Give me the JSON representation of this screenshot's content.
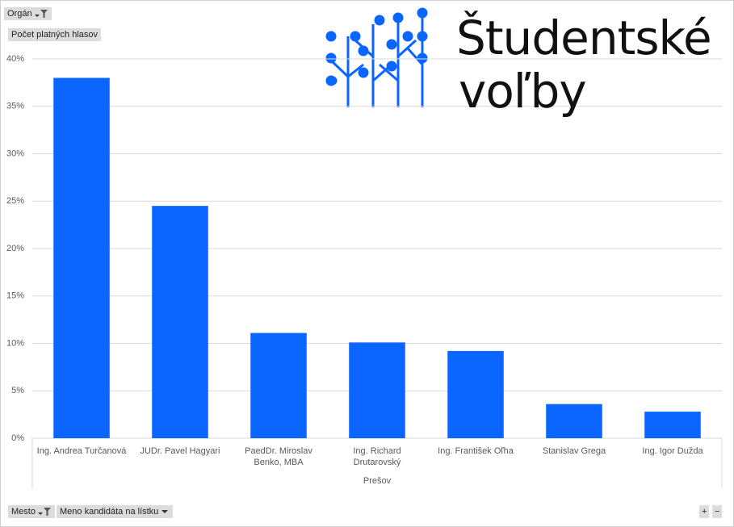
{
  "chart_data": {
    "type": "bar",
    "categories": [
      "Ing. Andrea Turčanová",
      "JUDr. Pavel Hagyari",
      "PaedDr. Miroslav Benko, MBA",
      "Ing. Richard Drutarovský",
      "Ing. František Oľha",
      "Stanislav Grega",
      "Ing. Igor Dužda"
    ],
    "group_label": "Prešov",
    "values": [
      38.0,
      24.5,
      11.1,
      10.1,
      9.2,
      3.6,
      2.8
    ],
    "color": "#0a66ff",
    "ylim": [
      0,
      40
    ],
    "yticks": [
      {
        "value": 0,
        "label": "0%"
      },
      {
        "value": 5,
        "label": "5%"
      },
      {
        "value": 10,
        "label": "10%"
      },
      {
        "value": 15,
        "label": "15%"
      },
      {
        "value": 20,
        "label": "20%"
      },
      {
        "value": 25,
        "label": "25%"
      },
      {
        "value": 30,
        "label": "30%"
      },
      {
        "value": 35,
        "label": "35%"
      },
      {
        "value": 40,
        "label": "40%"
      }
    ],
    "grid": true
  },
  "controls": {
    "filter_field": "Orgán",
    "value_field": "Počet platných hlasov",
    "axis_fields": [
      "Mesto",
      "Meno kandidáta na lístku"
    ],
    "expand": "+",
    "collapse": "−"
  },
  "logo": {
    "line1": "Študentské",
    "line2": "voľby"
  }
}
